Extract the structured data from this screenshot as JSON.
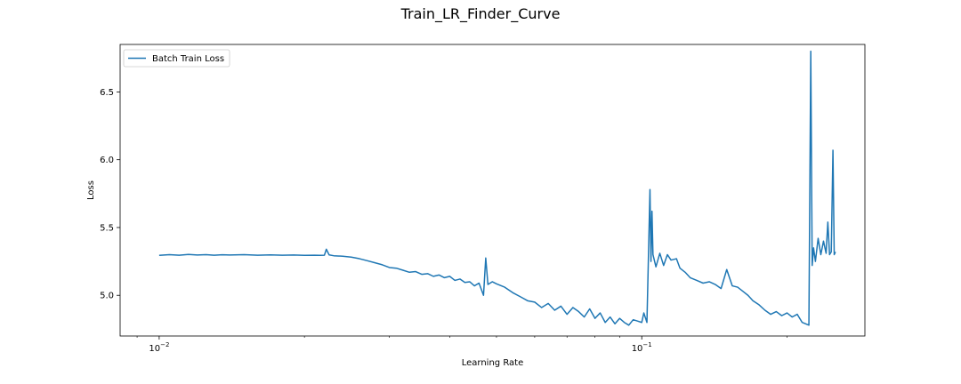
{
  "chart_data": {
    "type": "line",
    "title": "Train_LR_Finder_Curve",
    "xlabel": "Learning Rate",
    "ylabel": "Loss",
    "xscale": "log",
    "xlim": [
      0.0083,
      0.29
    ],
    "ylim": [
      4.7,
      6.85
    ],
    "grid": false,
    "legend_loc": "upper left",
    "x_ticks": [
      {
        "value": 0.01,
        "base": "10",
        "exp": "−2"
      },
      {
        "value": 0.1,
        "base": "10",
        "exp": "−1"
      }
    ],
    "y_ticks": [
      5.0,
      5.5,
      6.0,
      6.5
    ],
    "y_tick_labels": [
      "5.0",
      "5.5",
      "6.0",
      "6.5"
    ],
    "series": [
      {
        "name": "Batch Train Loss",
        "color": "#1f77b4",
        "points": [
          [
            0.01,
            5.295
          ],
          [
            0.0105,
            5.3
          ],
          [
            0.011,
            5.296
          ],
          [
            0.0115,
            5.301
          ],
          [
            0.012,
            5.297
          ],
          [
            0.0125,
            5.3
          ],
          [
            0.013,
            5.296
          ],
          [
            0.0135,
            5.299
          ],
          [
            0.014,
            5.297
          ],
          [
            0.015,
            5.3
          ],
          [
            0.016,
            5.296
          ],
          [
            0.017,
            5.298
          ],
          [
            0.018,
            5.296
          ],
          [
            0.019,
            5.297
          ],
          [
            0.02,
            5.295
          ],
          [
            0.021,
            5.296
          ],
          [
            0.0215,
            5.295
          ],
          [
            0.022,
            5.296
          ],
          [
            0.0222,
            5.34
          ],
          [
            0.0225,
            5.298
          ],
          [
            0.023,
            5.292
          ],
          [
            0.024,
            5.288
          ],
          [
            0.025,
            5.282
          ],
          [
            0.026,
            5.27
          ],
          [
            0.027,
            5.255
          ],
          [
            0.028,
            5.24
          ],
          [
            0.029,
            5.225
          ],
          [
            0.03,
            5.205
          ],
          [
            0.031,
            5.2
          ],
          [
            0.032,
            5.185
          ],
          [
            0.033,
            5.17
          ],
          [
            0.034,
            5.175
          ],
          [
            0.035,
            5.155
          ],
          [
            0.036,
            5.16
          ],
          [
            0.037,
            5.14
          ],
          [
            0.038,
            5.15
          ],
          [
            0.039,
            5.13
          ],
          [
            0.04,
            5.14
          ],
          [
            0.041,
            5.11
          ],
          [
            0.042,
            5.12
          ],
          [
            0.043,
            5.095
          ],
          [
            0.044,
            5.1
          ],
          [
            0.045,
            5.07
          ],
          [
            0.046,
            5.09
          ],
          [
            0.047,
            5.0
          ],
          [
            0.0475,
            5.275
          ],
          [
            0.048,
            5.08
          ],
          [
            0.049,
            5.1
          ],
          [
            0.05,
            5.085
          ],
          [
            0.052,
            5.06
          ],
          [
            0.054,
            5.02
          ],
          [
            0.056,
            4.99
          ],
          [
            0.058,
            4.96
          ],
          [
            0.06,
            4.95
          ],
          [
            0.062,
            4.91
          ],
          [
            0.064,
            4.94
          ],
          [
            0.066,
            4.89
          ],
          [
            0.068,
            4.92
          ],
          [
            0.07,
            4.86
          ],
          [
            0.072,
            4.91
          ],
          [
            0.074,
            4.88
          ],
          [
            0.076,
            4.84
          ],
          [
            0.078,
            4.9
          ],
          [
            0.08,
            4.83
          ],
          [
            0.082,
            4.87
          ],
          [
            0.084,
            4.8
          ],
          [
            0.086,
            4.84
          ],
          [
            0.088,
            4.79
          ],
          [
            0.09,
            4.83
          ],
          [
            0.092,
            4.8
          ],
          [
            0.094,
            4.78
          ],
          [
            0.096,
            4.82
          ],
          [
            0.098,
            4.81
          ],
          [
            0.1,
            4.8
          ],
          [
            0.101,
            4.87
          ],
          [
            0.1025,
            4.8
          ],
          [
            0.104,
            5.78
          ],
          [
            0.1045,
            5.25
          ],
          [
            0.105,
            5.62
          ],
          [
            0.1055,
            5.3
          ],
          [
            0.107,
            5.21
          ],
          [
            0.109,
            5.31
          ],
          [
            0.111,
            5.22
          ],
          [
            0.113,
            5.3
          ],
          [
            0.115,
            5.26
          ],
          [
            0.118,
            5.27
          ],
          [
            0.12,
            5.2
          ],
          [
            0.123,
            5.17
          ],
          [
            0.126,
            5.13
          ],
          [
            0.13,
            5.11
          ],
          [
            0.134,
            5.09
          ],
          [
            0.138,
            5.1
          ],
          [
            0.142,
            5.08
          ],
          [
            0.146,
            5.05
          ],
          [
            0.15,
            5.19
          ],
          [
            0.154,
            5.07
          ],
          [
            0.158,
            5.06
          ],
          [
            0.162,
            5.03
          ],
          [
            0.166,
            5.0
          ],
          [
            0.17,
            4.96
          ],
          [
            0.175,
            4.93
          ],
          [
            0.18,
            4.89
          ],
          [
            0.185,
            4.86
          ],
          [
            0.19,
            4.88
          ],
          [
            0.195,
            4.85
          ],
          [
            0.2,
            4.87
          ],
          [
            0.205,
            4.84
          ],
          [
            0.21,
            4.86
          ],
          [
            0.215,
            4.8
          ],
          [
            0.222,
            4.78
          ],
          [
            0.224,
            6.8
          ],
          [
            0.2255,
            5.22
          ],
          [
            0.227,
            5.35
          ],
          [
            0.229,
            5.25
          ],
          [
            0.232,
            5.42
          ],
          [
            0.235,
            5.3
          ],
          [
            0.238,
            5.4
          ],
          [
            0.241,
            5.31
          ],
          [
            0.243,
            5.54
          ],
          [
            0.245,
            5.3
          ],
          [
            0.247,
            5.32
          ],
          [
            0.249,
            6.07
          ],
          [
            0.2505,
            5.3
          ],
          [
            0.252,
            5.32
          ]
        ]
      }
    ]
  }
}
